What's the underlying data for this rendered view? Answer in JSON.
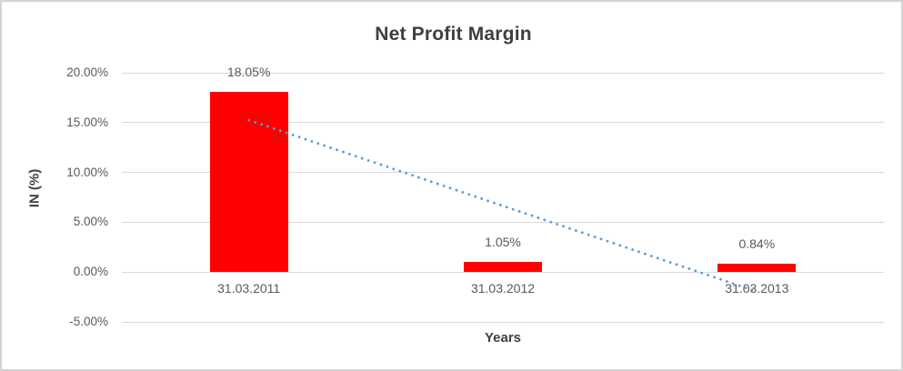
{
  "chart_data": {
    "type": "bar",
    "title": "Net Profit Margin",
    "xlabel": "Years",
    "ylabel": "IN (%)",
    "categories": [
      "31.03.2011",
      "31.03.2012",
      "31.03.2013"
    ],
    "values": [
      18.05,
      1.05,
      0.84
    ],
    "data_labels": [
      "18.05%",
      "1.05%",
      "0.84%"
    ],
    "ylim": [
      -5,
      20
    ],
    "yticks": [
      {
        "value": 20,
        "label": "20.00%"
      },
      {
        "value": 15,
        "label": "15.00%"
      },
      {
        "value": 10,
        "label": "10.00%"
      },
      {
        "value": 5,
        "label": "5.00%"
      },
      {
        "value": 0,
        "label": "0.00%"
      },
      {
        "value": -5,
        "label": "-5.00%"
      }
    ],
    "grid": true,
    "legend": false,
    "trendline": {
      "type": "linear",
      "style": "dotted",
      "start_value": 15.25,
      "end_value": -1.96
    },
    "colors": {
      "bar": "#FF0000",
      "trendline": "#5B9BD5",
      "title": "#3F3F3F",
      "tick_labels": "#595959",
      "gridline": "#D9D9D9",
      "frame_border": "#D4D4D4",
      "background": "#FFFFFF"
    }
  }
}
